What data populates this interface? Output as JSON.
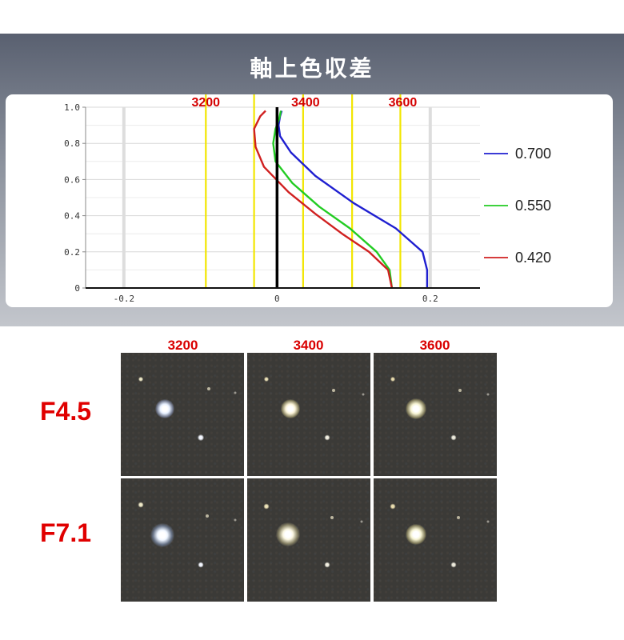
{
  "title": "軸上色収差",
  "chart_data": {
    "type": "line",
    "xlim": [
      -0.25,
      0.265
    ],
    "ylim": [
      0,
      1.0
    ],
    "x_ticks": [
      "-0.2",
      "0",
      "0.2"
    ],
    "y_ticks": [
      "0",
      "0.2",
      "0.4",
      "0.6",
      "0.8",
      "1.0"
    ],
    "grid": true,
    "legend_position": "right",
    "reference_lines": [
      {
        "label": "3200",
        "x": -0.093,
        "color": "#f2e600"
      },
      {
        "label": "",
        "x": -0.03,
        "color": "#f2e600"
      },
      {
        "label": "3400",
        "x": 0.034,
        "color": "#f2e600"
      },
      {
        "label": "",
        "x": 0.098,
        "color": "#f2e600"
      },
      {
        "label": "3600",
        "x": 0.161,
        "color": "#f2e600"
      }
    ],
    "series": [
      {
        "name": "0.700",
        "color": "#1f1fd0",
        "x": [
          0.196,
          0.196,
          0.19,
          0.155,
          0.1,
          0.05,
          0.018,
          0.004,
          0.002,
          0.004,
          0.006
        ],
        "y": [
          0.0,
          0.1,
          0.2,
          0.33,
          0.47,
          0.62,
          0.75,
          0.84,
          0.9,
          0.95,
          0.98
        ]
      },
      {
        "name": "0.550",
        "color": "#22cc22",
        "x": [
          0.15,
          0.147,
          0.13,
          0.095,
          0.055,
          0.02,
          -0.002,
          -0.005,
          -0.002,
          0.003,
          0.005
        ],
        "y": [
          0.0,
          0.1,
          0.2,
          0.33,
          0.45,
          0.58,
          0.7,
          0.8,
          0.88,
          0.94,
          0.98
        ]
      },
      {
        "name": "0.420",
        "color": "#d02020",
        "x": [
          0.15,
          0.145,
          0.12,
          0.085,
          0.05,
          0.015,
          -0.017,
          -0.028,
          -0.03,
          -0.022,
          -0.015
        ],
        "y": [
          0.0,
          0.1,
          0.2,
          0.3,
          0.41,
          0.53,
          0.67,
          0.78,
          0.88,
          0.95,
          0.98
        ]
      }
    ]
  },
  "grid_images": {
    "columns": [
      "3200",
      "3400",
      "3600"
    ],
    "rows": [
      "F4.5",
      "F7.1"
    ]
  }
}
